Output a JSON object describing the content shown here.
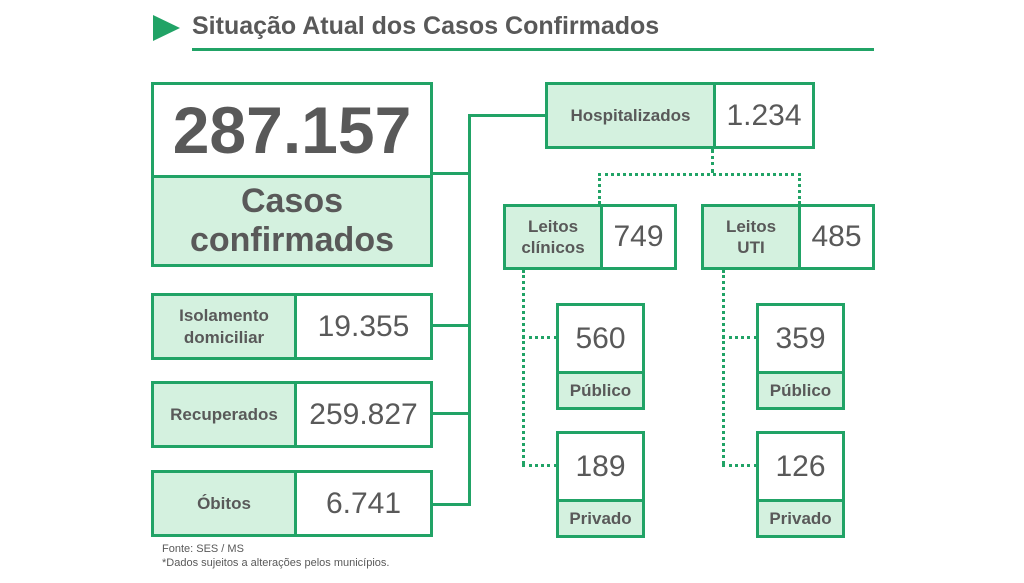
{
  "header": {
    "title": "Situação Atual dos Casos Confirmados",
    "accent_color": "#21a366"
  },
  "totals": {
    "confirmed_value": "287.157",
    "confirmed_label_line1": "Casos",
    "confirmed_label_line2": "confirmados"
  },
  "categories": {
    "isolation": {
      "label_line1": "Isolamento",
      "label_line2": "domiciliar",
      "value": "19.355"
    },
    "recovered": {
      "label": "Recuperados",
      "value": "259.827"
    },
    "deaths": {
      "label": "Óbitos",
      "value": "6.741"
    }
  },
  "hospital": {
    "label": "Hospitalizados",
    "value": "1.234",
    "clinical": {
      "label_line1": "Leitos",
      "label_line2": "clínicos",
      "value": "749",
      "public": {
        "value": "560",
        "label": "Público"
      },
      "private": {
        "value": "189",
        "label": "Privado"
      }
    },
    "icu": {
      "label_line1": "Leitos",
      "label_line2": "UTI",
      "value": "485",
      "public": {
        "value": "359",
        "label": "Público"
      },
      "private": {
        "value": "126",
        "label": "Privado"
      }
    }
  },
  "footer": {
    "source": "Fonte: SES / MS",
    "note": "*Dados sujeitos a alterações pelos municípios."
  }
}
